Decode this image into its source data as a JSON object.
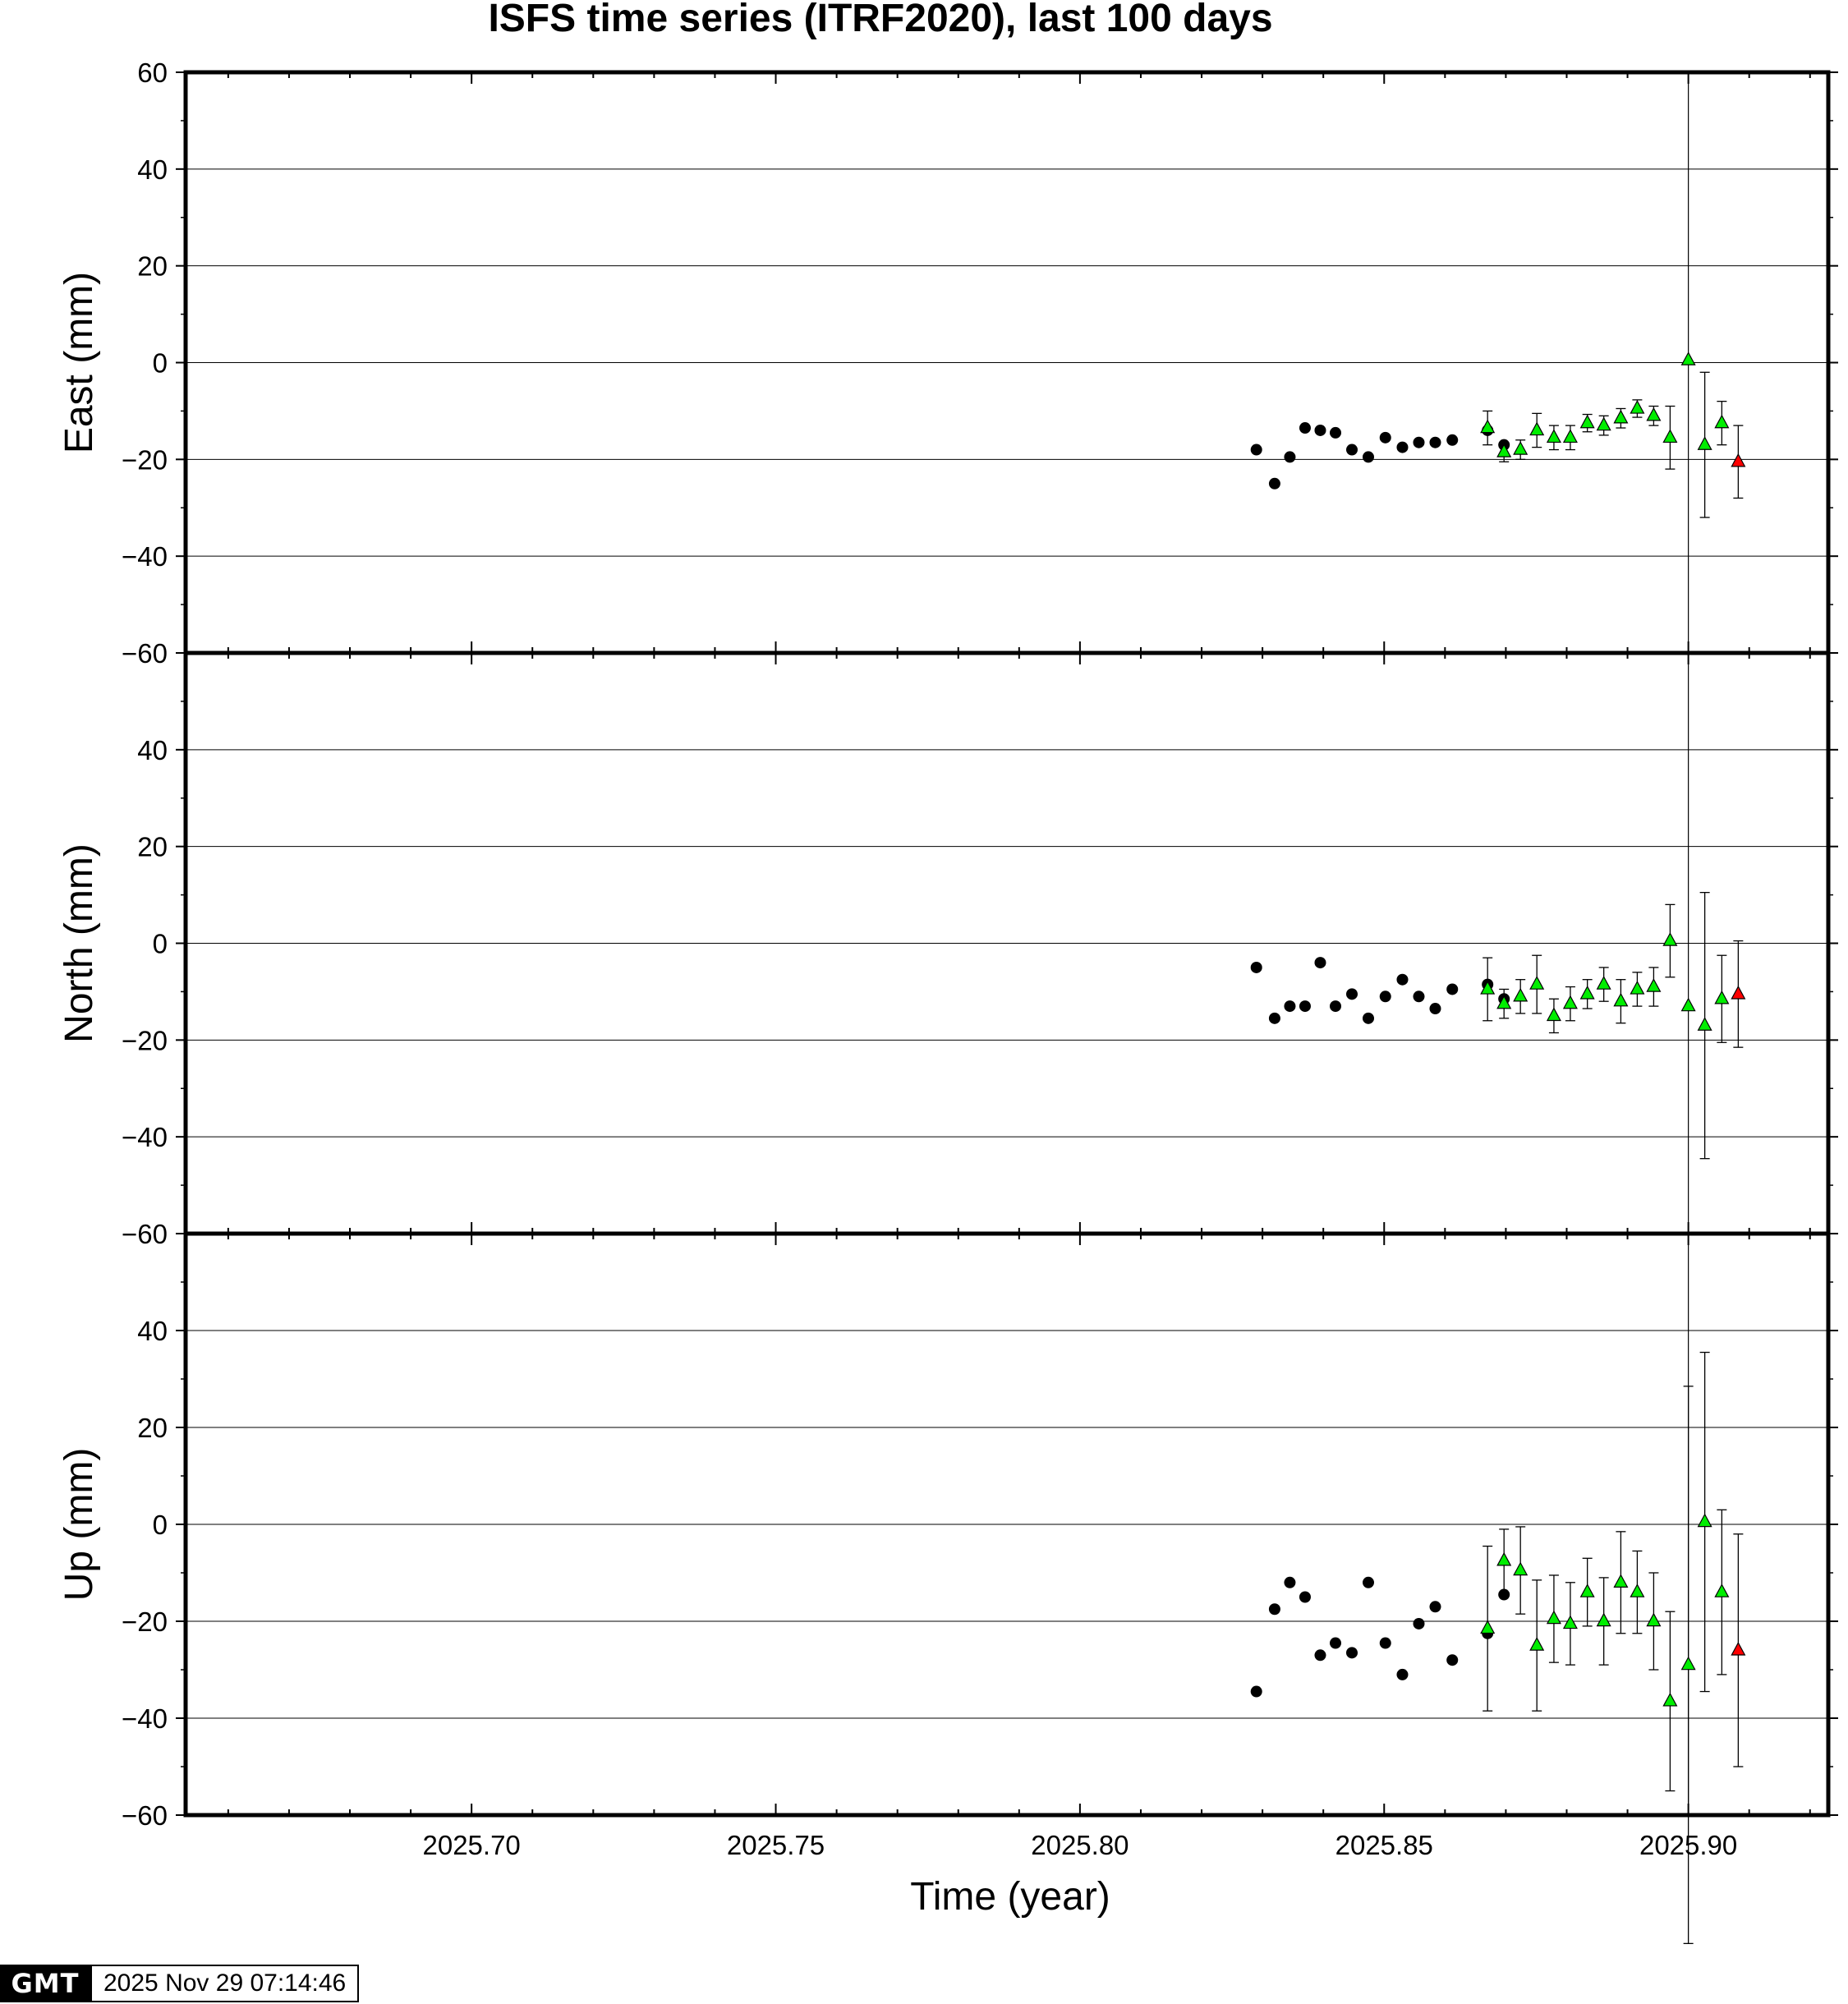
{
  "chart_data": {
    "type": "scatter",
    "title": "ISFS time series (ITRF2020), last 100 days",
    "xlabel": "Time (year)",
    "xlim": [
      2025.653,
      2025.923
    ],
    "x_ticks": [
      2025.7,
      2025.75,
      2025.8,
      2025.85,
      2025.9
    ],
    "x_tick_labels": [
      "2025.70",
      "2025.75",
      "2025.80",
      "2025.85",
      "2025.90"
    ],
    "x_minor_step": 0.01,
    "marker_colors": {
      "black_circle": "#000000",
      "green_triangle": "#00ee00",
      "red_triangle": "#ff0000"
    },
    "panels": [
      {
        "ylabel": "East (mm)",
        "ylim": [
          -60,
          60
        ],
        "y_ticks": [
          -60,
          -40,
          -20,
          0,
          20,
          40,
          60
        ],
        "y_tick_labels": [
          "−60",
          "−40",
          "−20",
          "0",
          "20",
          "40",
          "60"
        ],
        "vline_x": 2025.9,
        "series": [
          {
            "marker": "black_circle",
            "x": [
              2025.829,
              2025.832,
              2025.8345,
              2025.837,
              2025.8395,
              2025.842,
              2025.8447,
              2025.8474,
              2025.8502,
              2025.853,
              2025.8557,
              2025.8584,
              2025.8612,
              2025.867,
              2025.8697
            ],
            "y": [
              -18,
              -25,
              -19.5,
              -13.5,
              -14,
              -14.5,
              -18,
              -19.5,
              -15.5,
              -17.5,
              -16.5,
              -16.5,
              -16,
              -14,
              -17
            ]
          },
          {
            "marker": "green_triangle",
            "x": [
              2025.867,
              2025.8697,
              2025.8724,
              2025.8751,
              2025.8779,
              2025.8806,
              2025.8834,
              2025.8861,
              2025.8889,
              2025.8916,
              2025.8943,
              2025.897,
              2025.9,
              2025.9027,
              2025.9055
            ],
            "y": [
              -13.5,
              -18.5,
              -18,
              -14,
              -15.5,
              -15.5,
              -12.5,
              -13,
              -11.5,
              -9.5,
              -11,
              -15.5,
              0.5,
              -17,
              -12.5
            ],
            "err": [
              3.5,
              2,
              2,
              3.5,
              2.5,
              2.5,
              1.8,
              2,
              2,
              1.8,
              2,
              6.5,
              0,
              15,
              4.5
            ]
          },
          {
            "marker": "red_triangle",
            "x": [
              2025.9082
            ],
            "y": [
              -20.5
            ],
            "err": [
              7.5
            ]
          }
        ]
      },
      {
        "ylabel": "North (mm)",
        "ylim": [
          -60,
          60
        ],
        "y_ticks": [
          -60,
          -40,
          -20,
          0,
          20,
          40
        ],
        "y_tick_labels": [
          "−60",
          "−40",
          "−20",
          "0",
          "20",
          "40"
        ],
        "vline_x": 2025.9,
        "series": [
          {
            "marker": "black_circle",
            "x": [
              2025.829,
              2025.832,
              2025.8345,
              2025.837,
              2025.8395,
              2025.842,
              2025.8447,
              2025.8474,
              2025.8502,
              2025.853,
              2025.8557,
              2025.8584,
              2025.8612,
              2025.867,
              2025.8697
            ],
            "y": [
              -5,
              -15.5,
              -13,
              -13,
              -4,
              -13,
              -10.5,
              -15.5,
              -11,
              -7.5,
              -11,
              -13.5,
              -9.5,
              -8.5,
              -11.5
            ]
          },
          {
            "marker": "green_triangle",
            "x": [
              2025.867,
              2025.8697,
              2025.8724,
              2025.8751,
              2025.8779,
              2025.8806,
              2025.8834,
              2025.8861,
              2025.8889,
              2025.8916,
              2025.8943,
              2025.897,
              2025.9,
              2025.9027,
              2025.9055
            ],
            "y": [
              -9.5,
              -12.5,
              -11,
              -8.5,
              -15,
              -12.5,
              -10.5,
              -8.5,
              -12,
              -9.5,
              -9,
              0.5,
              -13,
              -17,
              -11.5
            ],
            "err": [
              6.5,
              3,
              3.5,
              6,
              3.5,
              3.5,
              3,
              3.5,
              4.5,
              3.5,
              4,
              7.5,
              0,
              27.5,
              9
            ]
          },
          {
            "marker": "red_triangle",
            "x": [
              2025.9082
            ],
            "y": [
              -10.5
            ],
            "err": [
              11
            ]
          }
        ]
      },
      {
        "ylabel": "Up (mm)",
        "ylim": [
          -60,
          60
        ],
        "y_ticks": [
          -60,
          -40,
          -20,
          0,
          20,
          40
        ],
        "y_tick_labels": [
          "−60",
          "−40",
          "−20",
          "0",
          "20",
          "40"
        ],
        "vline_x": 2025.9,
        "series": [
          {
            "marker": "black_circle",
            "x": [
              2025.829,
              2025.832,
              2025.8345,
              2025.837,
              2025.8395,
              2025.842,
              2025.8447,
              2025.8474,
              2025.8502,
              2025.853,
              2025.8557,
              2025.8584,
              2025.8612,
              2025.867,
              2025.8697
            ],
            "y": [
              -34.5,
              -17.5,
              -12,
              -15,
              -27,
              -24.5,
              -26.5,
              -12,
              -24.5,
              -31,
              -20.5,
              -17,
              -28,
              -22.5,
              -14.5
            ]
          },
          {
            "marker": "green_triangle",
            "x": [
              2025.867,
              2025.8697,
              2025.8724,
              2025.8751,
              2025.8779,
              2025.8806,
              2025.8834,
              2025.8861,
              2025.8889,
              2025.8916,
              2025.8943,
              2025.897,
              2025.9,
              2025.9027,
              2025.9055
            ],
            "y": [
              -21.5,
              -7.5,
              -9.5,
              -25,
              -19.5,
              -20.5,
              -14,
              -20,
              -12,
              -14,
              -20,
              -36.5,
              -29,
              0.5,
              -14
            ],
            "err": [
              17,
              6.5,
              9,
              13.5,
              9,
              8.5,
              7,
              9,
              10.5,
              8.5,
              10,
              18.5,
              57.5,
              35,
              17
            ]
          },
          {
            "marker": "red_triangle",
            "x": [
              2025.9082
            ],
            "y": [
              -26
            ],
            "err": [
              24
            ]
          }
        ]
      }
    ]
  },
  "footer": {
    "logo_text": "GMT",
    "timestamp": "2025 Nov 29 07:14:46"
  }
}
